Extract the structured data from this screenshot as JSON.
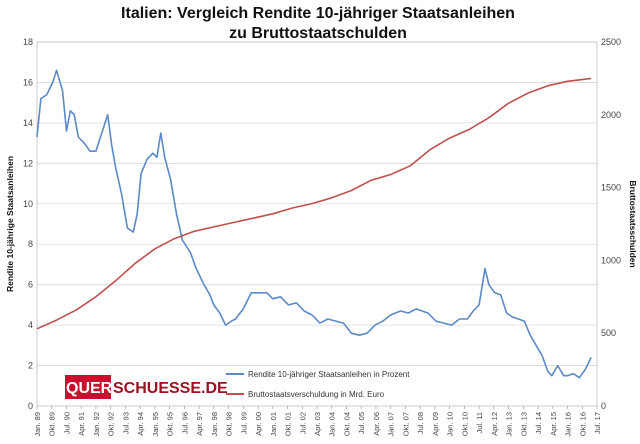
{
  "chart_data": {
    "type": "line",
    "title_line1": "Italien: Vergleich Rendite 10-jähriger Staatsanleihen",
    "title_line2": "zu Bruttostaatschulden",
    "ylabel_left": "Rendite 10-jährige Staatsanleihen",
    "ylabel_right": "Bruttostaatsschulden",
    "y_left_lim": [
      0,
      18
    ],
    "y_left_ticks": [
      "0",
      "2",
      "4",
      "6",
      "8",
      "10",
      "12",
      "14",
      "16",
      "18"
    ],
    "y_right_lim": [
      0,
      2500
    ],
    "y_right_ticks": [
      "0",
      "500",
      "1000",
      "1500",
      "2000",
      "2500"
    ],
    "x_range": [
      1989.0,
      2017.5
    ],
    "x_ticks": [
      "Jan. 89",
      "Okt. 89",
      "Jul. 90",
      "Apr. 91",
      "Jan. 92",
      "Okt. 92",
      "Jul. 93",
      "Apr. 94",
      "Jan. 95",
      "Okt. 95",
      "Jul. 96",
      "Apr. 97",
      "Jan. 98",
      "Okt. 98",
      "Jul. 99",
      "Apr. 00",
      "Jan. 01",
      "Okt. 01",
      "Jul. 02",
      "Apr. 03",
      "Jan. 04",
      "Okt. 04",
      "Jul. 05",
      "Apr. 06",
      "Jan. 07",
      "Okt. 07",
      "Jul. 08",
      "Apr. 09",
      "Jan. 10",
      "Okt. 10",
      "Jul. 11",
      "Apr. 12",
      "Jan. 13",
      "Okt. 13",
      "Jul. 14",
      "Apr. 15",
      "Jan. 16",
      "Okt. 16",
      "Jul. 17"
    ],
    "grid": "horizontal",
    "legend_position": "bottom-center",
    "series": [
      {
        "name": "Rendite 10-jähriger Staatsanleihen in Prozent",
        "axis": "left",
        "color": "#5b8ac6",
        "x": [
          1989.0,
          1989.2,
          1989.5,
          1989.8,
          1990.0,
          1990.3,
          1990.5,
          1990.7,
          1990.9,
          1991.1,
          1991.4,
          1991.7,
          1992.0,
          1992.3,
          1992.6,
          1992.8,
          1993.0,
          1993.3,
          1993.6,
          1993.9,
          1994.1,
          1994.3,
          1994.6,
          1994.9,
          1995.1,
          1995.3,
          1995.5,
          1995.8,
          1996.1,
          1996.4,
          1996.8,
          1997.1,
          1997.5,
          1997.8,
          1998.0,
          1998.3,
          1998.6,
          1998.9,
          1999.1,
          1999.5,
          1999.9,
          2000.3,
          2000.7,
          2001.0,
          2001.4,
          2001.8,
          2002.2,
          2002.6,
          2003.0,
          2003.4,
          2003.8,
          2004.2,
          2004.6,
          2005.0,
          2005.4,
          2005.8,
          2006.2,
          2006.6,
          2007.0,
          2007.5,
          2007.9,
          2008.3,
          2008.6,
          2008.9,
          2009.3,
          2009.7,
          2010.1,
          2010.5,
          2010.9,
          2011.2,
          2011.5,
          2011.8,
          2012.0,
          2012.3,
          2012.6,
          2012.9,
          2013.2,
          2013.5,
          2013.8,
          2014.1,
          2014.4,
          2014.7,
          2015.0,
          2015.2,
          2015.5,
          2015.8,
          2016.0,
          2016.3,
          2016.6,
          2016.9,
          2017.2
        ],
        "y": [
          13.3,
          15.2,
          15.4,
          16.0,
          16.6,
          15.6,
          13.6,
          14.6,
          14.4,
          13.3,
          13.0,
          12.6,
          12.6,
          13.5,
          14.4,
          12.9,
          11.8,
          10.5,
          8.8,
          8.6,
          9.5,
          11.5,
          12.2,
          12.5,
          12.3,
          13.5,
          12.3,
          11.2,
          9.5,
          8.2,
          7.6,
          6.8,
          6.0,
          5.5,
          5.0,
          4.6,
          4.0,
          4.2,
          4.3,
          4.8,
          5.6,
          5.6,
          5.6,
          5.3,
          5.4,
          5.0,
          5.1,
          4.7,
          4.5,
          4.1,
          4.3,
          4.2,
          4.1,
          3.6,
          3.5,
          3.6,
          4.0,
          4.2,
          4.5,
          4.7,
          4.6,
          4.8,
          4.7,
          4.6,
          4.2,
          4.1,
          4.0,
          4.3,
          4.3,
          4.7,
          5.0,
          6.8,
          6.0,
          5.6,
          5.5,
          4.6,
          4.4,
          4.3,
          4.2,
          3.5,
          3.0,
          2.5,
          1.7,
          1.5,
          2.0,
          1.5,
          1.5,
          1.6,
          1.4,
          1.8,
          2.4
        ]
      },
      {
        "name": "Bruttostaatsverschuldung in Mrd. Euro",
        "axis": "right",
        "color": "#c0504d",
        "x": [
          1989.0,
          1990.0,
          1991.0,
          1992.0,
          1993.0,
          1994.0,
          1995.0,
          1996.0,
          1997.0,
          1998.0,
          1999.0,
          2000.0,
          2001.0,
          2002.0,
          2003.0,
          2004.0,
          2005.0,
          2006.0,
          2007.0,
          2008.0,
          2009.0,
          2010.0,
          2011.0,
          2012.0,
          2013.0,
          2014.0,
          2015.0,
          2016.0,
          2017.2
        ],
        "y": [
          530,
          590,
          660,
          750,
          860,
          980,
          1080,
          1150,
          1200,
          1230,
          1260,
          1290,
          1320,
          1360,
          1390,
          1430,
          1480,
          1550,
          1590,
          1650,
          1760,
          1840,
          1900,
          1980,
          2080,
          2150,
          2200,
          2230,
          2250
        ]
      }
    ]
  },
  "logo": {
    "part1": "QUER",
    "part2": "SCHUESSE.DE"
  }
}
